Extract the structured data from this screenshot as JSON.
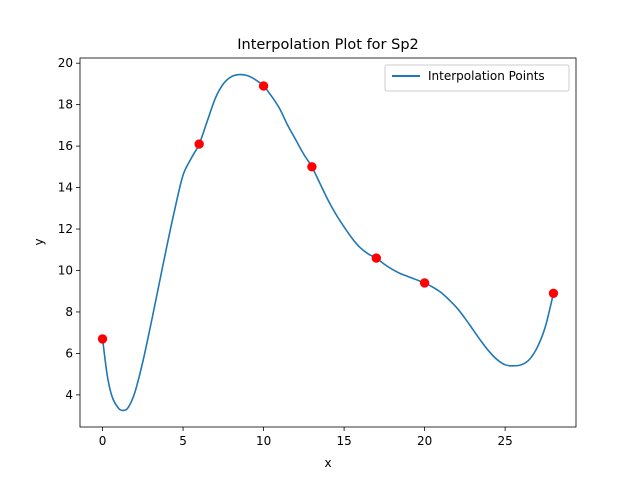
{
  "chart_data": {
    "type": "line",
    "title": "Interpolation Plot for Sp2",
    "xlabel": "x",
    "ylabel": "y",
    "xlim": [
      -1.4,
      29.4
    ],
    "ylim": [
      2.45,
      20.25
    ],
    "xticks": [
      0,
      5,
      10,
      15,
      20,
      25
    ],
    "yticks": [
      4,
      6,
      8,
      10,
      12,
      14,
      16,
      18,
      20
    ],
    "grid": false,
    "legend": {
      "position": "top-right",
      "entries": [
        "Interpolation Points"
      ]
    },
    "series": [
      {
        "name": "Interpolation Points",
        "color": "#1f77b4",
        "x": [
          0,
          0.3,
          0.6,
          1.0,
          1.3,
          1.6,
          2.0,
          2.5,
          3.0,
          3.5,
          4.0,
          4.5,
          5.0,
          5.5,
          6.0,
          6.5,
          7.0,
          7.5,
          8.0,
          8.5,
          9.0,
          9.5,
          10.0,
          10.5,
          11.0,
          11.5,
          12.0,
          12.5,
          13.0,
          13.5,
          14.0,
          14.5,
          15.0,
          15.5,
          16.0,
          16.5,
          17.0,
          17.5,
          18.0,
          18.5,
          19.0,
          19.5,
          20.0,
          20.5,
          21.0,
          21.5,
          22.0,
          22.5,
          23.0,
          23.5,
          24.0,
          24.5,
          25.0,
          25.5,
          26.0,
          26.5,
          27.0,
          27.5,
          28.0
        ],
        "y": [
          6.7,
          4.9,
          3.9,
          3.35,
          3.25,
          3.4,
          4.1,
          5.6,
          7.4,
          9.3,
          11.2,
          13.0,
          14.6,
          15.4,
          16.1,
          17.2,
          18.3,
          19.0,
          19.35,
          19.45,
          19.4,
          19.2,
          18.9,
          18.4,
          17.8,
          17.0,
          16.3,
          15.6,
          15.0,
          14.2,
          13.4,
          12.7,
          12.1,
          11.55,
          11.1,
          10.8,
          10.6,
          10.3,
          10.05,
          9.85,
          9.7,
          9.55,
          9.4,
          9.2,
          8.95,
          8.6,
          8.2,
          7.7,
          7.15,
          6.6,
          6.1,
          5.7,
          5.45,
          5.4,
          5.45,
          5.7,
          6.3,
          7.3,
          8.9
        ]
      },
      {
        "name": "",
        "color": "#ff0000",
        "marker": "circle",
        "x": [
          0,
          6,
          10,
          13,
          17,
          20,
          28
        ],
        "y": [
          6.7,
          16.1,
          18.9,
          15.0,
          10.6,
          9.4,
          8.9
        ]
      }
    ]
  }
}
